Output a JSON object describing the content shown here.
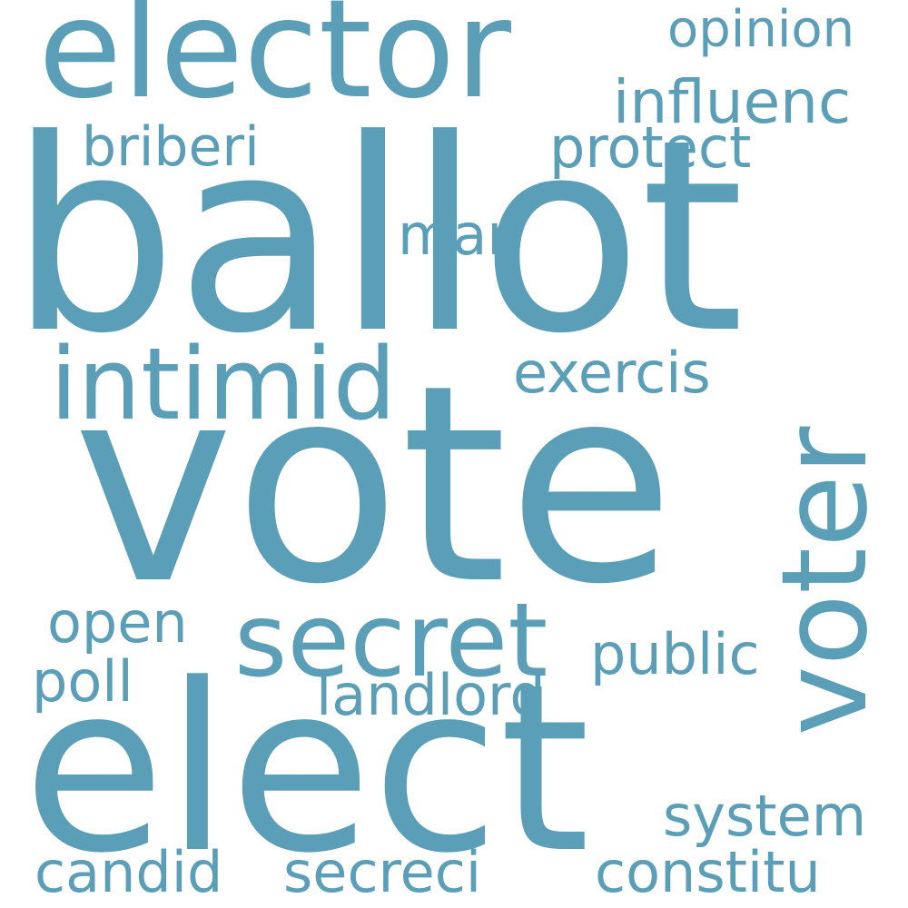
{
  "theme": {
    "word_color": "#5b9eb8",
    "background": "#ffffff"
  },
  "words": {
    "ballot": "ballot",
    "vote": "vote",
    "elect": "elect",
    "elector": "elector",
    "voter": "voter",
    "intimid": "intimid",
    "secret": "secret",
    "opinion": "opinion",
    "influenc": "influenc",
    "briberi": "briberi",
    "protect": "protect",
    "man": "man",
    "exercis": "exercis",
    "open": "open",
    "public": "public",
    "poll": "poll",
    "landlord": "landlord",
    "system": "system",
    "candid": "candid",
    "secreci": "secreci",
    "constitu": "constitu"
  }
}
